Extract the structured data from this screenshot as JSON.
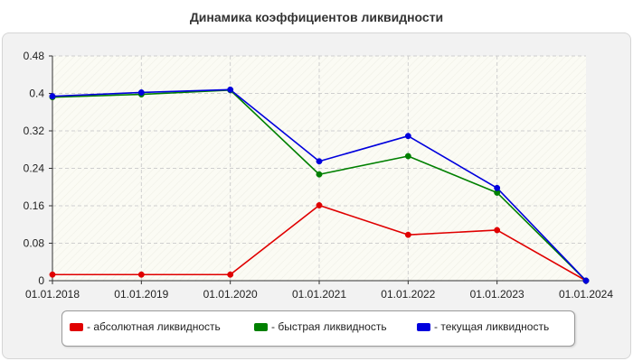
{
  "chart_data": {
    "type": "line",
    "title": "Динамика коэффициентов ликвидности",
    "categories": [
      "01.01.2018",
      "01.01.2019",
      "01.01.2020",
      "01.01.2021",
      "01.01.2022",
      "01.01.2023",
      "01.01.2024"
    ],
    "yticks": [
      "0",
      "0.08",
      "0.16",
      "0.24",
      "0.32",
      "0.4",
      "0.48"
    ],
    "ylim": [
      0,
      0.48
    ],
    "grid": true,
    "legend_position": "bottom",
    "series": [
      {
        "name": "- абсолютная ликвидность",
        "color": "#e00000",
        "values": [
          0.013,
          0.013,
          0.013,
          0.161,
          0.098,
          0.108,
          0.0
        ]
      },
      {
        "name": "- быстрая ликвидность",
        "color": "#008000",
        "values": [
          0.392,
          0.398,
          0.407,
          0.227,
          0.266,
          0.188,
          0.0
        ]
      },
      {
        "name": "- текущая ликвидность",
        "color": "#0000dd",
        "values": [
          0.394,
          0.402,
          0.408,
          0.255,
          0.309,
          0.198,
          0.0
        ]
      }
    ]
  }
}
